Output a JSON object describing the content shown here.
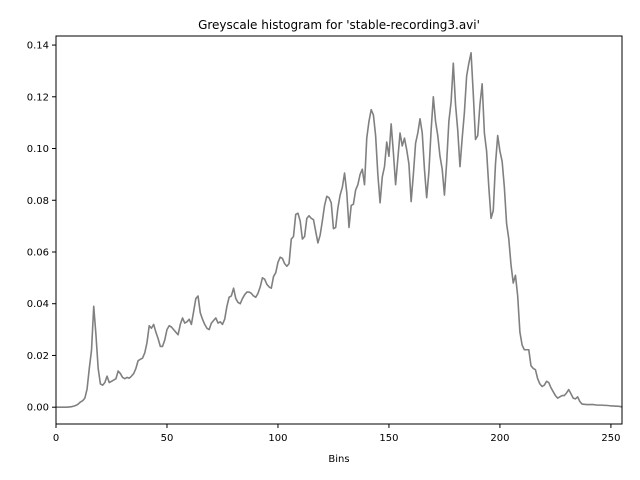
{
  "chart_data": {
    "type": "line",
    "title": "Greyscale histogram for 'stable-recording3.avi'",
    "xlabel": "Bins",
    "ylabel": "",
    "xlim": [
      0,
      255
    ],
    "ylim": [
      -0.0065,
      0.1435
    ],
    "xticks": [
      0,
      50,
      100,
      150,
      200,
      250
    ],
    "xtick_labels": [
      "0",
      "50",
      "100",
      "150",
      "200",
      "250"
    ],
    "yticks": [
      0.0,
      0.02,
      0.04,
      0.06,
      0.08,
      0.1,
      0.12,
      0.14
    ],
    "ytick_labels": [
      "0.00",
      "0.02",
      "0.04",
      "0.06",
      "0.08",
      "0.10",
      "0.12",
      "0.14"
    ],
    "grid": false,
    "series_color": "#808080",
    "series": [
      {
        "values": [
          0.0,
          0.0,
          0.0,
          0.0,
          0.0,
          0.0,
          0.0001,
          0.0002,
          0.0004,
          0.0007,
          0.0012,
          0.002,
          0.0025,
          0.0035,
          0.007,
          0.015,
          0.022,
          0.039,
          0.028,
          0.015,
          0.009,
          0.0085,
          0.0095,
          0.012,
          0.0095,
          0.01,
          0.0105,
          0.011,
          0.014,
          0.013,
          0.0115,
          0.011,
          0.0115,
          0.0112,
          0.012,
          0.013,
          0.015,
          0.018,
          0.0185,
          0.019,
          0.021,
          0.025,
          0.0315,
          0.0305,
          0.032,
          0.029,
          0.0265,
          0.0235,
          0.0235,
          0.026,
          0.03,
          0.0315,
          0.031,
          0.03,
          0.029,
          0.028,
          0.032,
          0.0345,
          0.0325,
          0.033,
          0.034,
          0.032,
          0.037,
          0.042,
          0.043,
          0.0365,
          0.034,
          0.032,
          0.0305,
          0.03,
          0.0325,
          0.0335,
          0.0345,
          0.0325,
          0.033,
          0.032,
          0.034,
          0.039,
          0.0425,
          0.043,
          0.046,
          0.042,
          0.0405,
          0.04,
          0.042,
          0.0435,
          0.0445,
          0.0445,
          0.044,
          0.043,
          0.0425,
          0.044,
          0.0465,
          0.05,
          0.0495,
          0.0475,
          0.0465,
          0.046,
          0.0505,
          0.052,
          0.056,
          0.058,
          0.0575,
          0.0555,
          0.0545,
          0.0555,
          0.065,
          0.066,
          0.0745,
          0.075,
          0.072,
          0.065,
          0.066,
          0.073,
          0.074,
          0.073,
          0.0725,
          0.068,
          0.0635,
          0.0665,
          0.072,
          0.078,
          0.0815,
          0.081,
          0.079,
          0.069,
          0.0695,
          0.077,
          0.082,
          0.085,
          0.0905,
          0.083,
          0.0695,
          0.078,
          0.0785,
          0.084,
          0.086,
          0.09,
          0.092,
          0.086,
          0.104,
          0.1105,
          0.115,
          0.113,
          0.105,
          0.09,
          0.079,
          0.089,
          0.093,
          0.1025,
          0.097,
          0.1095,
          0.0985,
          0.086,
          0.096,
          0.106,
          0.101,
          0.104,
          0.0995,
          0.094,
          0.0795,
          0.09,
          0.102,
          0.106,
          0.1115,
          0.106,
          0.092,
          0.081,
          0.091,
          0.107,
          0.12,
          0.1105,
          0.105,
          0.097,
          0.092,
          0.082,
          0.0945,
          0.1105,
          0.118,
          0.133,
          0.117,
          0.107,
          0.093,
          0.104,
          0.114,
          0.128,
          0.133,
          0.137,
          0.121,
          0.1035,
          0.105,
          0.117,
          0.125,
          0.106,
          0.099,
          0.085,
          0.073,
          0.076,
          0.094,
          0.105,
          0.099,
          0.095,
          0.085,
          0.071,
          0.065,
          0.055,
          0.048,
          0.051,
          0.043,
          0.029,
          0.024,
          0.0222,
          0.0222,
          0.0222,
          0.016,
          0.015,
          0.0145,
          0.011,
          0.009,
          0.008,
          0.0085,
          0.01,
          0.0095,
          0.0075,
          0.006,
          0.0045,
          0.0035,
          0.004,
          0.0045,
          0.0045,
          0.0055,
          0.0068,
          0.0052,
          0.0035,
          0.0032,
          0.004,
          0.0022,
          0.0012,
          0.0011,
          0.001,
          0.001,
          0.001,
          0.001,
          0.0009,
          0.0008,
          0.0008,
          0.0008,
          0.0007,
          0.0007,
          0.0006,
          0.0005,
          0.0005,
          0.0004,
          0.0004,
          0.0003,
          0.0001
        ]
      }
    ]
  }
}
